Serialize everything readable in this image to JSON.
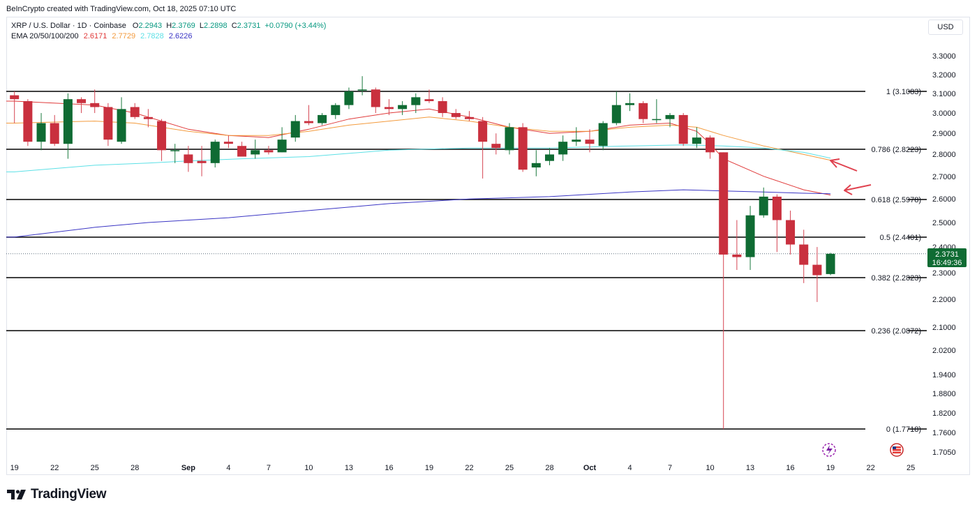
{
  "header": {
    "credit": "BeInCrypto created with TradingView.com, Oct 18, 2025 07:10 UTC"
  },
  "legend": {
    "symbol": "XRP / U.S. Dollar · 1D · Coinbase",
    "ohlc": {
      "o_label": "O",
      "o_value": "2.2943",
      "h_label": "H",
      "h_value": "2.3769",
      "l_label": "L",
      "l_value": "2.2898",
      "c_label": "C",
      "c_value": "2.3731",
      "change": "+0.0790 (+3.44%)"
    },
    "ema": {
      "label": "EMA 20/50/100/200",
      "v20": "2.6171",
      "v50": "2.7729",
      "v100": "2.7828",
      "v200": "2.6226"
    }
  },
  "currency": "USD",
  "price_tag": {
    "price": "2.3731",
    "countdown": "16:49:36"
  },
  "footer": {
    "brand": "TradingView"
  },
  "colors": {
    "up": "#0f6b33",
    "down": "#c9303e",
    "up_wick": "#1a7a3e",
    "down_wick": "#d54452",
    "ema20": "#e03a3a",
    "ema50": "#f39a3c",
    "ema100": "#5ce0e6",
    "ema200": "#3a35c4",
    "fib_line": "#000000",
    "arrow": "#e0424f",
    "price_tag": "#0f6b33"
  },
  "chart_data": {
    "type": "candlestick",
    "y_range": [
      1.69,
      3.35
    ],
    "y_scale": "log",
    "y_ticks": [
      "3.3000",
      "3.2000",
      "3.1000",
      "3.0000",
      "2.9000",
      "2.8000",
      "2.7000",
      "2.6000",
      "2.5000",
      "2.4000",
      "2.3000",
      "2.2000",
      "2.1000",
      "2.0200",
      "1.9400",
      "1.8800",
      "1.8200",
      "1.7600",
      "1.7050"
    ],
    "x_ticks": [
      {
        "label": "19",
        "day": 0
      },
      {
        "label": "22",
        "day": 3
      },
      {
        "label": "25",
        "day": 6
      },
      {
        "label": "28",
        "day": 9
      },
      {
        "label": "Sep",
        "day": 13,
        "bold": true
      },
      {
        "label": "4",
        "day": 16
      },
      {
        "label": "7",
        "day": 19
      },
      {
        "label": "10",
        "day": 22
      },
      {
        "label": "13",
        "day": 25
      },
      {
        "label": "16",
        "day": 28
      },
      {
        "label": "19",
        "day": 31
      },
      {
        "label": "22",
        "day": 34
      },
      {
        "label": "25",
        "day": 37
      },
      {
        "label": "28",
        "day": 40
      },
      {
        "label": "Oct",
        "day": 43,
        "bold": true
      },
      {
        "label": "4",
        "day": 46
      },
      {
        "label": "7",
        "day": 49
      },
      {
        "label": "10",
        "day": 52
      },
      {
        "label": "13",
        "day": 55
      },
      {
        "label": "16",
        "day": 58
      },
      {
        "label": "19",
        "day": 61
      },
      {
        "label": "22",
        "day": 64
      },
      {
        "label": "25",
        "day": 67
      }
    ],
    "first_day": "2025-08-18",
    "candles": [
      {
        "o": 3.09,
        "h": 3.11,
        "l": 2.95,
        "c": 3.07
      },
      {
        "o": 3.06,
        "h": 3.07,
        "l": 2.84,
        "c": 2.86
      },
      {
        "o": 2.86,
        "h": 3.0,
        "l": 2.82,
        "c": 2.95
      },
      {
        "o": 2.95,
        "h": 2.99,
        "l": 2.84,
        "c": 2.85
      },
      {
        "o": 2.85,
        "h": 3.1,
        "l": 2.78,
        "c": 3.07
      },
      {
        "o": 3.07,
        "h": 3.08,
        "l": 3.0,
        "c": 3.05
      },
      {
        "o": 3.05,
        "h": 3.12,
        "l": 3.0,
        "c": 3.03
      },
      {
        "o": 3.03,
        "h": 3.05,
        "l": 2.84,
        "c": 2.87
      },
      {
        "o": 2.86,
        "h": 3.08,
        "l": 2.85,
        "c": 3.02
      },
      {
        "o": 3.03,
        "h": 3.05,
        "l": 2.97,
        "c": 2.98
      },
      {
        "o": 2.98,
        "h": 3.02,
        "l": 2.93,
        "c": 2.97
      },
      {
        "o": 2.96,
        "h": 2.97,
        "l": 2.77,
        "c": 2.82
      },
      {
        "o": 2.82,
        "h": 2.85,
        "l": 2.76,
        "c": 2.82
      },
      {
        "o": 2.8,
        "h": 2.84,
        "l": 2.72,
        "c": 2.76
      },
      {
        "o": 2.77,
        "h": 2.84,
        "l": 2.7,
        "c": 2.76
      },
      {
        "o": 2.76,
        "h": 2.87,
        "l": 2.74,
        "c": 2.86
      },
      {
        "o": 2.86,
        "h": 2.89,
        "l": 2.83,
        "c": 2.85
      },
      {
        "o": 2.84,
        "h": 2.86,
        "l": 2.79,
        "c": 2.79
      },
      {
        "o": 2.8,
        "h": 2.87,
        "l": 2.78,
        "c": 2.82
      },
      {
        "o": 2.82,
        "h": 2.84,
        "l": 2.8,
        "c": 2.81
      },
      {
        "o": 2.81,
        "h": 2.93,
        "l": 2.81,
        "c": 2.87
      },
      {
        "o": 2.88,
        "h": 2.99,
        "l": 2.86,
        "c": 2.96
      },
      {
        "o": 2.96,
        "h": 3.04,
        "l": 2.94,
        "c": 2.95
      },
      {
        "o": 2.95,
        "h": 3.0,
        "l": 2.94,
        "c": 2.99
      },
      {
        "o": 2.99,
        "h": 3.05,
        "l": 2.97,
        "c": 3.04
      },
      {
        "o": 3.04,
        "h": 3.13,
        "l": 3.02,
        "c": 3.11
      },
      {
        "o": 3.12,
        "h": 3.19,
        "l": 3.09,
        "c": 3.12
      },
      {
        "o": 3.12,
        "h": 3.13,
        "l": 3.0,
        "c": 3.03
      },
      {
        "o": 3.03,
        "h": 3.07,
        "l": 2.99,
        "c": 3.02
      },
      {
        "o": 3.02,
        "h": 3.06,
        "l": 2.99,
        "c": 3.04
      },
      {
        "o": 3.04,
        "h": 3.1,
        "l": 3.0,
        "c": 3.08
      },
      {
        "o": 3.07,
        "h": 3.12,
        "l": 3.05,
        "c": 3.06
      },
      {
        "o": 3.06,
        "h": 3.08,
        "l": 2.98,
        "c": 3.0
      },
      {
        "o": 3.0,
        "h": 3.02,
        "l": 2.97,
        "c": 2.98
      },
      {
        "o": 2.98,
        "h": 3.01,
        "l": 2.96,
        "c": 2.97
      },
      {
        "o": 2.96,
        "h": 2.98,
        "l": 2.69,
        "c": 2.86
      },
      {
        "o": 2.85,
        "h": 2.9,
        "l": 2.8,
        "c": 2.83
      },
      {
        "o": 2.82,
        "h": 2.95,
        "l": 2.8,
        "c": 2.93
      },
      {
        "o": 2.93,
        "h": 2.95,
        "l": 2.72,
        "c": 2.73
      },
      {
        "o": 2.74,
        "h": 2.82,
        "l": 2.7,
        "c": 2.76
      },
      {
        "o": 2.77,
        "h": 2.83,
        "l": 2.75,
        "c": 2.8
      },
      {
        "o": 2.8,
        "h": 2.89,
        "l": 2.77,
        "c": 2.86
      },
      {
        "o": 2.86,
        "h": 2.93,
        "l": 2.84,
        "c": 2.87
      },
      {
        "o": 2.87,
        "h": 2.92,
        "l": 2.81,
        "c": 2.85
      },
      {
        "o": 2.84,
        "h": 2.96,
        "l": 2.82,
        "c": 2.95
      },
      {
        "o": 2.95,
        "h": 3.11,
        "l": 2.94,
        "c": 3.04
      },
      {
        "o": 3.04,
        "h": 3.1,
        "l": 3.01,
        "c": 3.05
      },
      {
        "o": 3.05,
        "h": 3.06,
        "l": 2.95,
        "c": 2.97
      },
      {
        "o": 2.97,
        "h": 3.07,
        "l": 2.95,
        "c": 2.97
      },
      {
        "o": 2.97,
        "h": 3.0,
        "l": 2.93,
        "c": 2.99
      },
      {
        "o": 2.99,
        "h": 3.0,
        "l": 2.84,
        "c": 2.85
      },
      {
        "o": 2.85,
        "h": 2.93,
        "l": 2.83,
        "c": 2.88
      },
      {
        "o": 2.88,
        "h": 2.89,
        "l": 2.78,
        "c": 2.81
      },
      {
        "o": 2.81,
        "h": 2.81,
        "l": 1.7718,
        "c": 2.37
      },
      {
        "o": 2.37,
        "h": 2.51,
        "l": 2.31,
        "c": 2.36
      },
      {
        "o": 2.36,
        "h": 2.57,
        "l": 2.31,
        "c": 2.53
      },
      {
        "o": 2.53,
        "h": 2.65,
        "l": 2.52,
        "c": 2.61
      },
      {
        "o": 2.61,
        "h": 2.62,
        "l": 2.38,
        "c": 2.51
      },
      {
        "o": 2.51,
        "h": 2.55,
        "l": 2.37,
        "c": 2.41
      },
      {
        "o": 2.41,
        "h": 2.47,
        "l": 2.26,
        "c": 2.33
      },
      {
        "o": 2.33,
        "h": 2.4,
        "l": 2.19,
        "c": 2.29
      },
      {
        "o": 2.2943,
        "h": 2.3769,
        "l": 2.2898,
        "c": 2.3731
      }
    ],
    "ema": {
      "ema20": {
        "name": "EMA 20",
        "points": [
          [
            0,
            3.06
          ],
          [
            6,
            3.04
          ],
          [
            9,
            3.0
          ],
          [
            13,
            2.92
          ],
          [
            16,
            2.89
          ],
          [
            19,
            2.88
          ],
          [
            22,
            2.92
          ],
          [
            25,
            2.97
          ],
          [
            28,
            3.0
          ],
          [
            31,
            3.02
          ],
          [
            34,
            2.98
          ],
          [
            37,
            2.93
          ],
          [
            40,
            2.9
          ],
          [
            43,
            2.91
          ],
          [
            46,
            2.94
          ],
          [
            49,
            2.95
          ],
          [
            51,
            2.91
          ],
          [
            52,
            2.85
          ],
          [
            53,
            2.78
          ],
          [
            56,
            2.7
          ],
          [
            59,
            2.64
          ],
          [
            61,
            2.6171
          ]
        ]
      },
      "ema50": {
        "name": "EMA 50",
        "points": [
          [
            0,
            2.95
          ],
          [
            6,
            2.96
          ],
          [
            9,
            2.95
          ],
          [
            13,
            2.91
          ],
          [
            16,
            2.89
          ],
          [
            19,
            2.89
          ],
          [
            22,
            2.91
          ],
          [
            25,
            2.94
          ],
          [
            28,
            2.96
          ],
          [
            31,
            2.98
          ],
          [
            34,
            2.96
          ],
          [
            37,
            2.93
          ],
          [
            40,
            2.91
          ],
          [
            43,
            2.91
          ],
          [
            46,
            2.93
          ],
          [
            49,
            2.94
          ],
          [
            51,
            2.93
          ],
          [
            53,
            2.89
          ],
          [
            56,
            2.84
          ],
          [
            59,
            2.8
          ],
          [
            61,
            2.7729
          ]
        ]
      },
      "ema100": {
        "name": "EMA 100",
        "points": [
          [
            0,
            2.72
          ],
          [
            6,
            2.75
          ],
          [
            10,
            2.76
          ],
          [
            13,
            2.77
          ],
          [
            17,
            2.78
          ],
          [
            22,
            2.79
          ],
          [
            28,
            2.82
          ],
          [
            34,
            2.83
          ],
          [
            40,
            2.83
          ],
          [
            46,
            2.84
          ],
          [
            50,
            2.845
          ],
          [
            53,
            2.84
          ],
          [
            56,
            2.83
          ],
          [
            59,
            2.81
          ],
          [
            61,
            2.7828
          ]
        ]
      },
      "ema200": {
        "name": "EMA 200",
        "points": [
          [
            0,
            2.44
          ],
          [
            6,
            2.48
          ],
          [
            10,
            2.5
          ],
          [
            16,
            2.52
          ],
          [
            22,
            2.55
          ],
          [
            28,
            2.58
          ],
          [
            34,
            2.6
          ],
          [
            40,
            2.61
          ],
          [
            46,
            2.63
          ],
          [
            50,
            2.64
          ],
          [
            53,
            2.635
          ],
          [
            56,
            2.63
          ],
          [
            59,
            2.625
          ],
          [
            61,
            2.6226
          ]
        ]
      }
    },
    "fib_levels": [
      {
        "label": "1 (3.1083)",
        "value": 3.1083
      },
      {
        "label": "0.786 (2.8223)",
        "value": 2.8223
      },
      {
        "label": "0.618 (2.5978)",
        "value": 2.5978
      },
      {
        "label": "0.5 (2.4401)",
        "value": 2.4401
      },
      {
        "label": "0.382 (2.2823)",
        "value": 2.2823
      },
      {
        "label": "0.236 (2.0872)",
        "value": 2.0872
      },
      {
        "label": "0 (1.7718)",
        "value": 1.7718
      }
    ],
    "current_price": 2.3731
  }
}
